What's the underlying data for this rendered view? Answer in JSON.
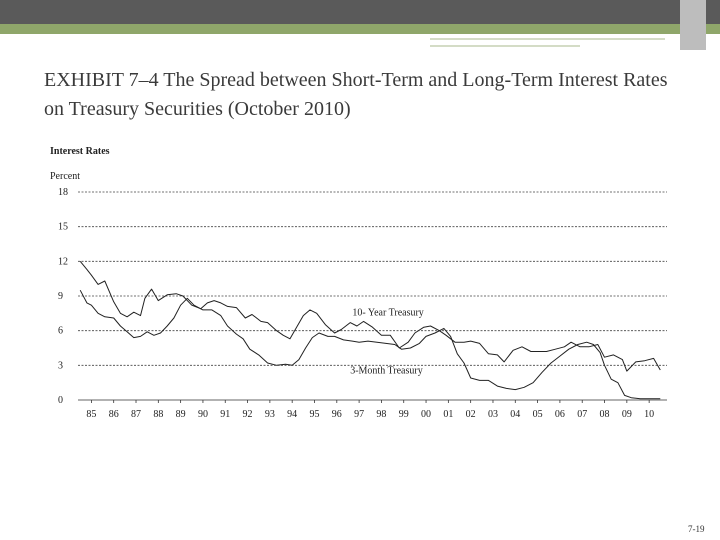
{
  "slide": {
    "title": "EXHIBIT 7–4 The Spread between Short-Term and Long-Term Interest Rates on Treasury Securities (October 2010)",
    "page_number": "7-19"
  },
  "chart_data": {
    "type": "line",
    "title": "Interest Rates",
    "ylabel": "Percent",
    "xlabel": "",
    "ylim": [
      0,
      18
    ],
    "yticks": [
      0,
      3,
      6,
      9,
      12,
      15,
      18
    ],
    "xlim": [
      1984.4,
      2010.8
    ],
    "xtick_labels": [
      "85",
      "86",
      "87",
      "88",
      "89",
      "90",
      "91",
      "92",
      "93",
      "94",
      "95",
      "96",
      "97",
      "98",
      "99",
      "00",
      "01",
      "02",
      "03",
      "04",
      "05",
      "06",
      "07",
      "08",
      "09",
      "10"
    ],
    "grid": true,
    "series": [
      {
        "name": "10- Year Treasury",
        "color": "#222222",
        "x": [
          1984.5,
          1984.8,
          1985.0,
          1985.3,
          1985.6,
          1986.0,
          1986.3,
          1986.6,
          1986.9,
          1987.2,
          1987.4,
          1987.7,
          1988.0,
          1988.4,
          1988.8,
          1989.1,
          1989.5,
          1989.9,
          1990.2,
          1990.5,
          1990.8,
          1991.1,
          1991.5,
          1991.9,
          1992.2,
          1992.6,
          1992.9,
          1993.3,
          1993.6,
          1993.9,
          1994.2,
          1994.5,
          1994.8,
          1995.1,
          1995.5,
          1995.9,
          1996.2,
          1996.6,
          1996.9,
          1997.2,
          1997.6,
          1998.0,
          1998.4,
          1998.8,
          1999.2,
          1999.5,
          1999.9,
          2000.2,
          2000.6,
          2000.9,
          2001.3,
          2001.7,
          2002.0,
          2002.4,
          2002.8,
          2003.2,
          2003.5,
          2003.9,
          2004.3,
          2004.7,
          2005.0,
          2005.4,
          2005.8,
          2006.2,
          2006.5,
          2006.9,
          2007.3,
          2007.7,
          2008.0,
          2008.4,
          2008.8,
          2009.0,
          2009.4,
          2009.8,
          2010.2,
          2010.5
        ],
        "values": [
          12.0,
          11.3,
          10.8,
          10.0,
          10.3,
          8.5,
          7.5,
          7.2,
          7.6,
          7.3,
          8.8,
          9.6,
          8.6,
          9.1,
          9.2,
          9.0,
          8.2,
          7.9,
          8.4,
          8.6,
          8.4,
          8.1,
          8.0,
          7.1,
          7.4,
          6.8,
          6.7,
          6.0,
          5.6,
          5.3,
          6.3,
          7.3,
          7.8,
          7.5,
          6.5,
          5.8,
          6.1,
          6.7,
          6.4,
          6.8,
          6.3,
          5.6,
          5.6,
          4.5,
          5.0,
          5.8,
          6.3,
          6.4,
          6.0,
          5.6,
          5.0,
          5.0,
          5.1,
          4.9,
          4.0,
          3.9,
          3.3,
          4.3,
          4.6,
          4.2,
          4.2,
          4.2,
          4.4,
          4.6,
          5.0,
          4.6,
          4.6,
          4.8,
          3.7,
          3.9,
          3.5,
          2.5,
          3.3,
          3.4,
          3.6,
          2.6
        ]
      },
      {
        "name": "3-Month Treasury",
        "color": "#222222",
        "x": [
          1984.5,
          1984.8,
          1985.0,
          1985.3,
          1985.6,
          1986.0,
          1986.3,
          1986.6,
          1986.9,
          1987.2,
          1987.5,
          1987.8,
          1988.1,
          1988.4,
          1988.7,
          1989.0,
          1989.3,
          1989.6,
          1990.0,
          1990.4,
          1990.8,
          1991.1,
          1991.5,
          1991.8,
          1992.1,
          1992.5,
          1992.9,
          1993.3,
          1993.7,
          1994.0,
          1994.3,
          1994.6,
          1994.9,
          1995.2,
          1995.6,
          1995.9,
          1996.3,
          1996.7,
          1997.0,
          1997.4,
          1997.8,
          1998.2,
          1998.6,
          1998.9,
          1999.3,
          1999.7,
          2000.0,
          2000.4,
          2000.8,
          2001.1,
          2001.4,
          2001.7,
          2002.0,
          2002.4,
          2002.8,
          2003.2,
          2003.6,
          2004.0,
          2004.4,
          2004.8,
          2005.2,
          2005.6,
          2006.0,
          2006.4,
          2006.8,
          2007.2,
          2007.5,
          2007.8,
          2008.0,
          2008.3,
          2008.6,
          2008.9,
          2009.2,
          2009.6,
          2010.0,
          2010.5
        ],
        "values": [
          9.5,
          8.4,
          8.2,
          7.5,
          7.2,
          7.1,
          6.4,
          5.9,
          5.4,
          5.5,
          5.9,
          5.6,
          5.8,
          6.4,
          7.1,
          8.2,
          8.8,
          8.2,
          7.8,
          7.8,
          7.3,
          6.4,
          5.7,
          5.3,
          4.4,
          3.9,
          3.2,
          3.0,
          3.1,
          3.0,
          3.5,
          4.5,
          5.4,
          5.8,
          5.5,
          5.5,
          5.2,
          5.1,
          5.0,
          5.1,
          5.0,
          4.9,
          4.8,
          4.4,
          4.5,
          4.9,
          5.5,
          5.8,
          6.2,
          5.5,
          4.0,
          3.2,
          1.9,
          1.7,
          1.7,
          1.2,
          1.0,
          0.9,
          1.1,
          1.5,
          2.4,
          3.2,
          3.8,
          4.4,
          4.8,
          5.0,
          4.8,
          4.1,
          3.0,
          1.8,
          1.5,
          0.4,
          0.2,
          0.1,
          0.1,
          0.1
        ]
      }
    ],
    "annotations": [
      {
        "text": "10- Year Treasury",
        "x": 1996.7,
        "y": 7.3
      },
      {
        "text": "3-Month Treasury",
        "x": 1996.6,
        "y": 2.3
      }
    ]
  }
}
